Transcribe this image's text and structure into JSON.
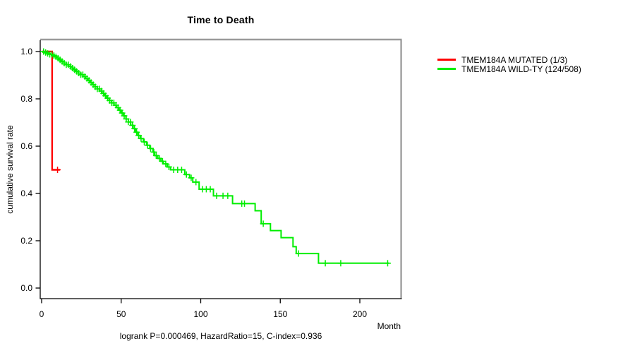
{
  "title": "Time to Death",
  "footer": "logrank P=0.000469, HazardRatio=15, C-index=0.936",
  "axes": {
    "x_label": "Month",
    "y_label": "cumulative survival rate",
    "x_ticks": [
      "0",
      "50",
      "100",
      "150",
      "200"
    ],
    "y_ticks": [
      "0.0",
      "0.2",
      "0.4",
      "0.6",
      "0.8",
      "1.0"
    ]
  },
  "chart_data": {
    "type": "line",
    "subtype": "kaplan-meier-step",
    "title": "Time to Death",
    "xlabel": "Month",
    "ylabel": "cumulative survival rate",
    "xlim": [
      0,
      226
    ],
    "ylim": [
      0,
      1.0
    ],
    "grid": false,
    "legend_position": "right-outside",
    "annotation": "logrank P=0.000469, HazardRatio=15, C-index=0.936",
    "series": [
      {
        "name": "TMEM184A MUTATED (1/3)",
        "color": "#ff0000",
        "steps": [
          [
            0,
            1.0
          ],
          [
            6.6,
            0.5
          ]
        ],
        "end_month": 11.5,
        "censor_months": [
          10
        ]
      },
      {
        "name": "TMEM184A WILD-TY (124/508)",
        "color": "#00ee00",
        "steps": [
          [
            0,
            1.0
          ],
          [
            2,
            0.996
          ],
          [
            3.5,
            0.992
          ],
          [
            5,
            0.988
          ],
          [
            6.5,
            0.983
          ],
          [
            8,
            0.978
          ],
          [
            9.5,
            0.972
          ],
          [
            11,
            0.965
          ],
          [
            12.5,
            0.958
          ],
          [
            14,
            0.951
          ],
          [
            15.5,
            0.944
          ],
          [
            17,
            0.937
          ],
          [
            18.5,
            0.93
          ],
          [
            20,
            0.923
          ],
          [
            21.5,
            0.916
          ],
          [
            23,
            0.909
          ],
          [
            24.5,
            0.902
          ],
          [
            26,
            0.894
          ],
          [
            27.5,
            0.886
          ],
          [
            29,
            0.878
          ],
          [
            30.5,
            0.869
          ],
          [
            32,
            0.86
          ],
          [
            33.5,
            0.851
          ],
          [
            35,
            0.842
          ],
          [
            36.5,
            0.833
          ],
          [
            38,
            0.823
          ],
          [
            39.5,
            0.813
          ],
          [
            41,
            0.803
          ],
          [
            42.5,
            0.793
          ],
          [
            44,
            0.783
          ],
          [
            45.5,
            0.773
          ],
          [
            47,
            0.763
          ],
          [
            48.5,
            0.752
          ],
          [
            50,
            0.74
          ],
          [
            51.5,
            0.728
          ],
          [
            53,
            0.715
          ],
          [
            54.5,
            0.702
          ],
          [
            56,
            0.688
          ],
          [
            57.5,
            0.674
          ],
          [
            59,
            0.659
          ],
          [
            60.5,
            0.645
          ],
          [
            62,
            0.632
          ],
          [
            64,
            0.618
          ],
          [
            66,
            0.604
          ],
          [
            68,
            0.59
          ],
          [
            70,
            0.575
          ],
          [
            71,
            0.56
          ],
          [
            73,
            0.548
          ],
          [
            75,
            0.536
          ],
          [
            76.5,
            0.525
          ],
          [
            79,
            0.512
          ],
          [
            81,
            0.5
          ],
          [
            90,
            0.48
          ],
          [
            93,
            0.466
          ],
          [
            95,
            0.448
          ],
          [
            99,
            0.418
          ],
          [
            108,
            0.39
          ],
          [
            120,
            0.357
          ],
          [
            134.2,
            0.327
          ],
          [
            138,
            0.272
          ],
          [
            143.8,
            0.243
          ],
          [
            150.5,
            0.213
          ],
          [
            158,
            0.175
          ],
          [
            160,
            0.146
          ],
          [
            174,
            0.105
          ]
        ],
        "end_month": 218.5,
        "censor_months": [
          1.2,
          2.5,
          3.8,
          5.1,
          6.4,
          7.7,
          9,
          10.3,
          11.6,
          12.9,
          14.2,
          15.5,
          16.8,
          18.1,
          19.4,
          20.7,
          22,
          23.3,
          24.6,
          25.9,
          27.2,
          28.5,
          29.8,
          31.1,
          32.4,
          33.7,
          35,
          36.3,
          37.6,
          38.9,
          40.2,
          41.5,
          42.8,
          44.1,
          45.4,
          46.7,
          48,
          49.3,
          50.6,
          51.9,
          53.2,
          54.5,
          55.8,
          57.1,
          58.4,
          59.7,
          61,
          62.5,
          64.5,
          66.5,
          68.5,
          70.5,
          72,
          74,
          76,
          78,
          80,
          83,
          85.5,
          88,
          91,
          94,
          97,
          101,
          103.5,
          106,
          110,
          114,
          117,
          125.8,
          127.5,
          139.3,
          161.5,
          178.3,
          188,
          217.5
        ]
      }
    ]
  }
}
